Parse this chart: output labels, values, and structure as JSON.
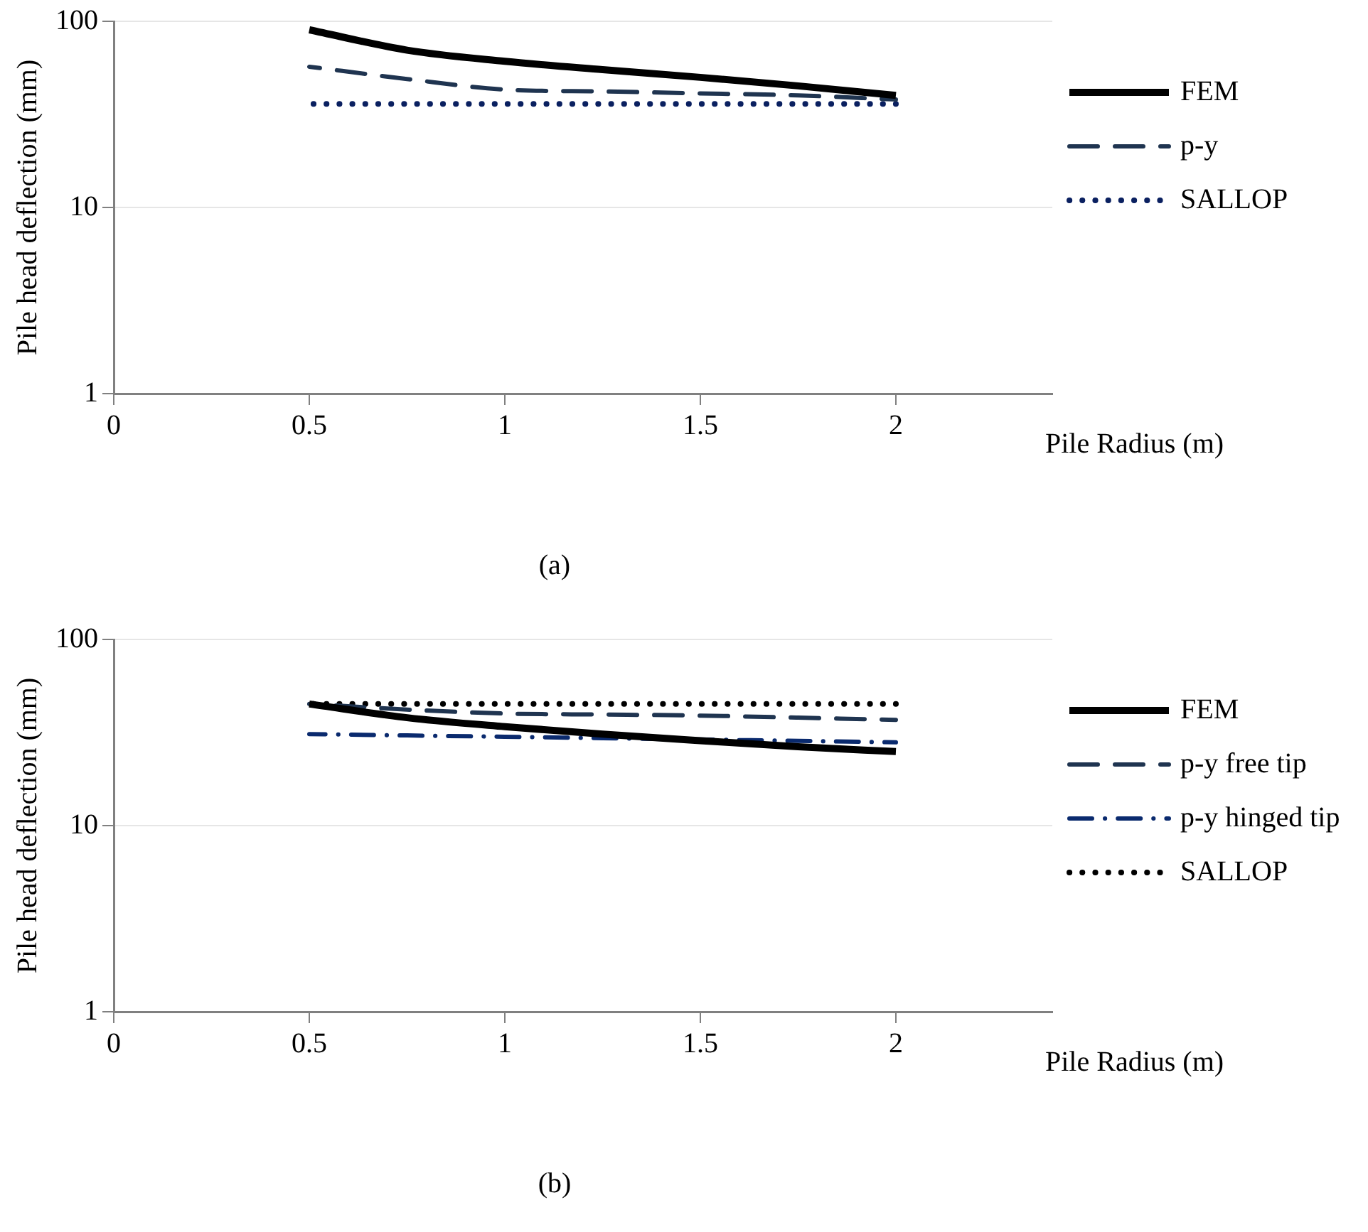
{
  "chart_data": [
    {
      "type": "line",
      "xlabel": "Pile Radius (m)",
      "ylabel": "Pile head deflection (mm)",
      "x": [
        0.5,
        0.75,
        1,
        1.25,
        1.5,
        1.75,
        2
      ],
      "log": "y",
      "xlim": [
        0,
        2.4
      ],
      "xticks": [
        0,
        0.5,
        1,
        1.5,
        2
      ],
      "ylim": [
        1,
        100
      ],
      "yticks": [
        1,
        10,
        100
      ],
      "grid": "y",
      "legend": "right",
      "marker": "none",
      "annotations": [
        "(a)"
      ],
      "series": [
        {
          "name": "FEM",
          "color": "#000000",
          "line_style": "solid",
          "values": [
            90,
            70,
            61,
            55,
            50,
            45,
            40
          ]
        },
        {
          "name": "p-y",
          "color": "#1f3450",
          "line_style": "dashed",
          "values": [
            57,
            49,
            43,
            42,
            41,
            40,
            38
          ]
        },
        {
          "name": "SALLOP",
          "color": "#0a2060",
          "line_style": "dotted",
          "values": [
            36,
            36,
            36,
            36,
            36,
            36,
            36
          ]
        }
      ]
    },
    {
      "type": "line",
      "xlabel": "Pile Radius (m)",
      "ylabel": "Pile head deflection (mm)",
      "x": [
        0.5,
        0.75,
        1,
        1.25,
        1.5,
        1.75,
        2
      ],
      "log": "y",
      "xlim": [
        0,
        2.4
      ],
      "xticks": [
        0,
        0.5,
        1,
        1.5,
        2
      ],
      "ylim": [
        1,
        100
      ],
      "yticks": [
        1,
        10,
        100
      ],
      "grid": "y",
      "legend": "right",
      "marker": "none",
      "annotations": [
        "(b)"
      ],
      "series": [
        {
          "name": "FEM",
          "color": "#000000",
          "line_style": "solid",
          "values": [
            45,
            38,
            34,
            31,
            28.6,
            26.5,
            25
          ]
        },
        {
          "name": "p-y free tip",
          "color": "#1f3450",
          "line_style": "dashed",
          "values": [
            45,
            42,
            40,
            39.5,
            39,
            38,
            37
          ]
        },
        {
          "name": "p-y hinged tip",
          "color": "#0a2a6e",
          "line_style": "dashdot",
          "values": [
            31,
            30.5,
            30,
            29.5,
            29,
            28.5,
            28
          ]
        },
        {
          "name": "SALLOP",
          "color": "#000000",
          "line_style": "dotted",
          "values": [
            45,
            45,
            45,
            45,
            45,
            45,
            45
          ]
        }
      ]
    }
  ]
}
